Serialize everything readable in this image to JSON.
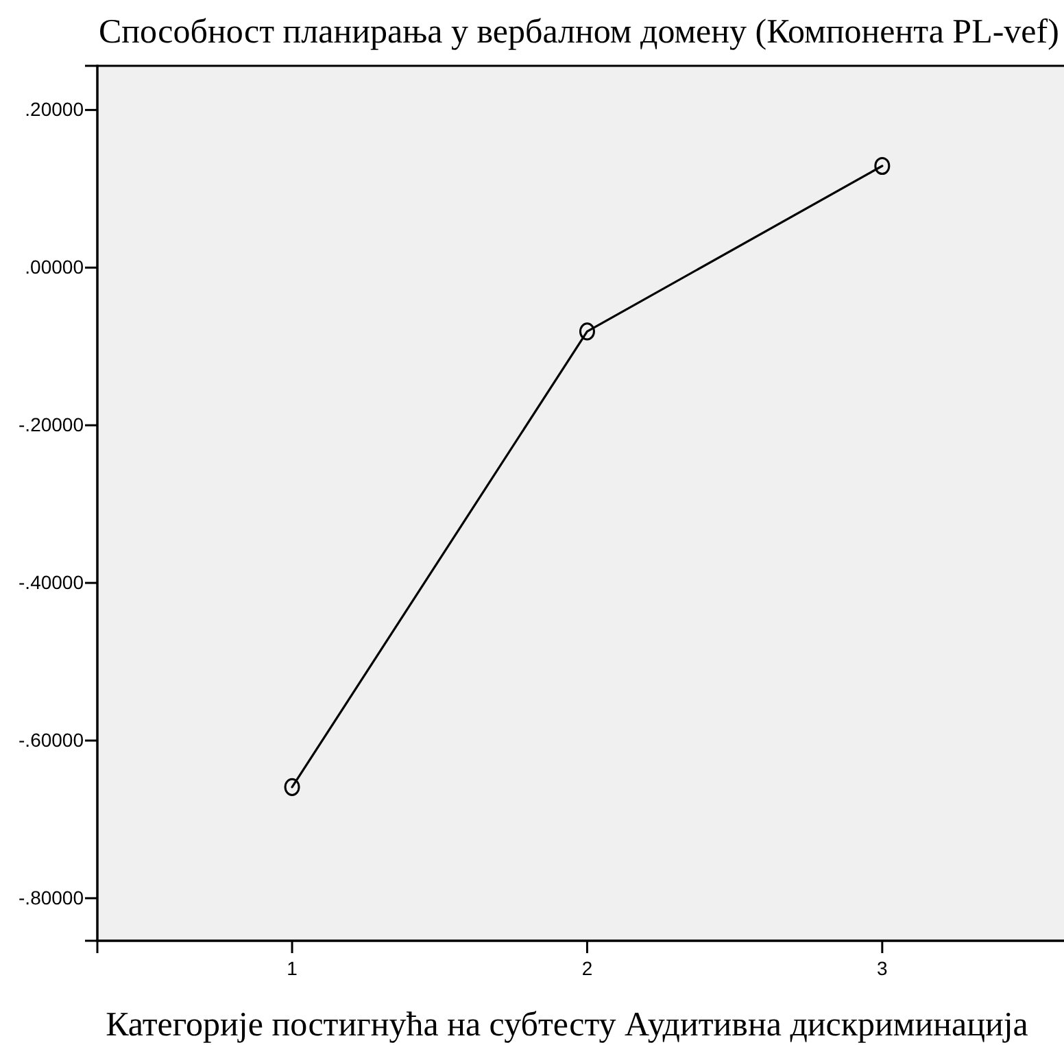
{
  "chart_data": {
    "type": "line",
    "title": "Способност планирања у вербалном домену (Компонента PL-vef)",
    "xlabel": "Категорије постигнућа на субтесту Аудитивна дискриминација",
    "x": [
      1,
      2,
      3
    ],
    "series": [
      {
        "color": "#000000",
        "values": [
          -0.659,
          -0.081,
          0.129
        ]
      }
    ],
    "xlim": [
      0.34,
      3.63
    ],
    "xticks": [
      1,
      2,
      3
    ],
    "ylim": [
      -0.854,
      0.256
    ],
    "yticks": [
      {
        "value": 0.2,
        "label": ".20000"
      },
      {
        "value": 0,
        "label": ".00000"
      },
      {
        "value": -0.2,
        "label": "-.20000"
      },
      {
        "value": -0.4,
        "label": "-.40000"
      },
      {
        "value": -0.6,
        "label": "-.60000"
      },
      {
        "value": -0.8,
        "label": "-.80000"
      }
    ],
    "marker": "circle",
    "line_style": "solid",
    "grid": false
  }
}
